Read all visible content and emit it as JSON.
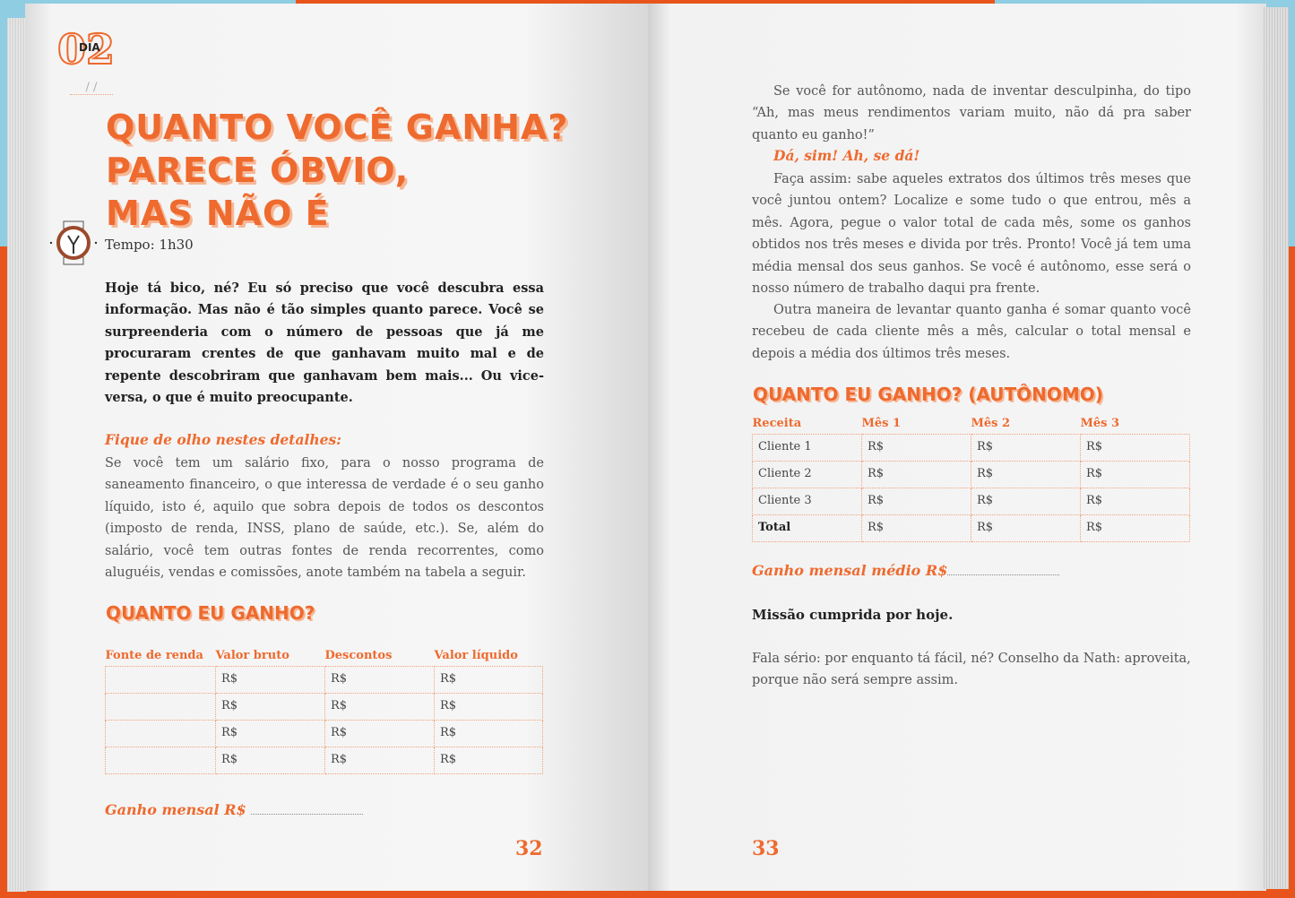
{
  "left": {
    "day_label": "DIA",
    "day_number": "02",
    "date_placeholder": "/ /",
    "title_lines": [
      "QUANTO VOCÊ GANHA?",
      "PARECE ÓBVIO,",
      "MAS NÃO É"
    ],
    "time": "Tempo: 1h30",
    "intro": "Hoje tá bico, né? Eu só preciso que você descubra essa informação. Mas não é tão simples quanto parece. Você se surpreenderia com o número de pessoas que já me procuraram crentes de que ganhavam muito mal e de repente descobriram que ganhavam bem mais... Ou vice-versa, o que é muito preocupante.",
    "subheading": "Fique de olho nestes detalhes:",
    "paragraph": "Se você tem um salário fixo, para o nosso programa de saneamento financeiro, o que interessa de verdade é o seu ganho líquido, isto é, aquilo que sobra depois de todos os descontos (imposto de renda, INSS, plano de saúde, etc.). Se, além do salário, você tem outras fontes de renda recorrentes, como aluguéis, vendas e comissões, anote também na tabela a seguir.",
    "table_title": "QUANTO EU GANHO?",
    "table_headers": [
      "Fonte de renda",
      "Valor bruto",
      "Descontos",
      "Valor líquido"
    ],
    "table_rows": [
      [
        "",
        "R$",
        "R$",
        "R$"
      ],
      [
        "",
        "R$",
        "R$",
        "R$"
      ],
      [
        "",
        "R$",
        "R$",
        "R$"
      ],
      [
        "",
        "R$",
        "R$",
        "R$"
      ]
    ],
    "monthly": "Ganho mensal R$",
    "page_number": "32"
  },
  "right": {
    "p1": "Se você for autônomo, nada de inventar desculpinha, do tipo “Ah, mas meus rendimentos variam muito, não dá pra saber quanto eu ganho!”",
    "exclaim": "Dá, sim! Ah, se dá!",
    "p2": "Faça assim: sabe aqueles extratos dos últimos três meses que você juntou ontem? Localize e some tudo o que entrou, mês a mês. Agora, pegue o valor total de cada mês, some os ganhos obtidos nos três meses e divida por três. Pronto! Você já tem uma média mensal dos seus ganhos. Se você é autônomo, esse será o nosso número de trabalho daqui pra frente.",
    "p3": "Outra maneira de levantar quanto ganha é somar quanto você recebeu de cada cliente mês a mês, calcular o total mensal e depois a média dos últimos três meses.",
    "table_title": "QUANTO EU GANHO? (AUTÔNOMO)",
    "table_headers": [
      "Receita",
      "Mês 1",
      "Mês 2",
      "Mês 3"
    ],
    "table_rows": [
      [
        "Cliente 1",
        "R$",
        "R$",
        "R$"
      ],
      [
        "Cliente 2",
        "R$",
        "R$",
        "R$"
      ],
      [
        "Cliente 3",
        "R$",
        "R$",
        "R$"
      ],
      [
        "Total",
        "R$",
        "R$",
        "R$"
      ]
    ],
    "average": "Ganho mensal médio R$",
    "mission": "Missão cumprida por hoje.",
    "closing": "Fala sério: por enquanto tá fácil, né? Conselho da Nath: aproveita, porque não será sempre assim.",
    "page_number": "33"
  },
  "colors": {
    "accent": "#ee6a2e",
    "background_top": "#8fcde3",
    "background": "#e8541c"
  },
  "icons": {
    "timer": "stopwatch-icon"
  }
}
